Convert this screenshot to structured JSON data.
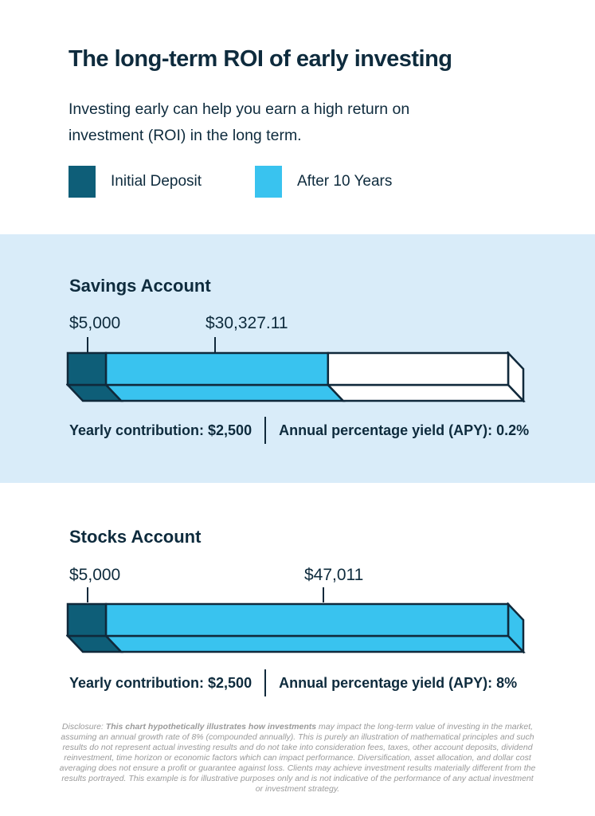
{
  "header": {
    "title": "The long-term ROI of early investing",
    "subtitle": "Investing early can help you earn a high return on investment (ROI) in the long term.",
    "legend": [
      {
        "label": "Initial Deposit",
        "color": "#0E5E78"
      },
      {
        "label": "After 10 Years",
        "color": "#39C3EF"
      }
    ]
  },
  "colors": {
    "text": "#0E2B3D",
    "outline": "#10293B",
    "initial": "#0E5E78",
    "growth": "#39C3EF",
    "empty": "#FFFFFF",
    "band_background": "#D9ECF9",
    "disclosure_text": "#9A9A9A"
  },
  "chart_data": {
    "type": "bar",
    "title": "The long-term ROI of early investing",
    "legend": [
      "Initial Deposit",
      "After 10 Years"
    ],
    "legend_position": "top",
    "unit": "USD",
    "accounts": [
      {
        "name": "Savings Account",
        "initial_deposit": 5000,
        "initial_label": "$5,000",
        "after_10_years": 30327.11,
        "after_10_years_label": "$30,327.11",
        "yearly_contribution": 2500,
        "apy_percent": 0.2,
        "stats_left": "Yearly contribution: $2,500",
        "stats_right": "Annual percentage yield (APY): 0.2%",
        "bar": {
          "initial_fraction": 0.087,
          "fill_fraction": 0.591
        },
        "positions": {
          "initial_label_x": 87,
          "initial_tick_x": 109,
          "value_label_x": 258,
          "value_tick_x": 269
        }
      },
      {
        "name": "Stocks Account",
        "initial_deposit": 5000,
        "initial_label": "$5,000",
        "after_10_years": 47011,
        "after_10_years_label": "$47,011",
        "yearly_contribution": 2500,
        "apy_percent": 8,
        "stats_left": "Yearly contribution: $2,500",
        "stats_right": "Annual percentage yield (APY): 8%",
        "bar": {
          "initial_fraction": 0.087,
          "fill_fraction": 1.0
        },
        "positions": {
          "initial_label_x": 87,
          "initial_tick_x": 109,
          "value_label_x": 382,
          "value_tick_x": 405
        }
      }
    ]
  },
  "disclosure": {
    "prefix": "Disclosure: ",
    "bold": "This chart hypothetically illustrates how investments",
    "rest": " may impact the long-term value of investing in the market, assuming an annual growth rate of 8% (compounded annually). This is purely an illustration of mathematical principles and such results do not represent actual investing results and do not take into consideration fees, taxes, other account deposits, dividend reinvestment, time horizon or economic factors which can impact performance. Diversification, asset allocation, and dollar cost averaging does not ensure a profit or guarantee against loss. Clients may achieve investment results materially different from the results portrayed. This example is for illustrative purposes only and is not indicative of the performance of any actual investment or investment strategy."
  }
}
